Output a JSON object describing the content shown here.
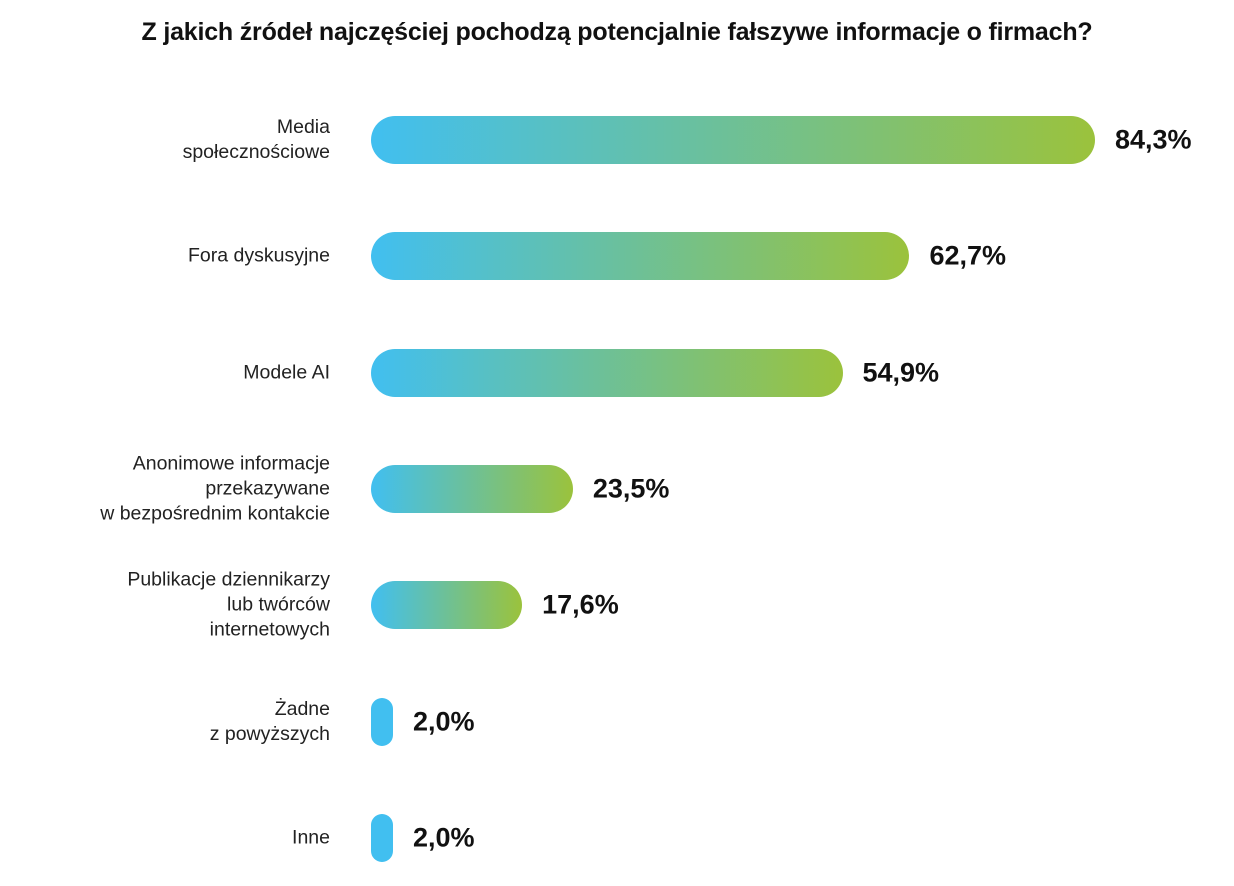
{
  "chart_data": {
    "type": "bar",
    "orientation": "horizontal",
    "title": "Z jakich źródeł najczęściej pochodzą potencjalnie fałszywe informacje o firmach?",
    "categories": [
      "Media\nspołecznościowe",
      "Fora dyskusyjne",
      "Modele AI",
      "Anonimowe informacje\nprzekazywane\nw bezpośrednim kontakcie",
      "Publikacje dziennikarzy\nlub twórców\ninternetowych",
      "Żadne\nz powyższych",
      "Inne"
    ],
    "values": [
      84.3,
      62.7,
      54.9,
      23.5,
      17.6,
      2.0,
      2.0
    ],
    "value_labels": [
      "84,3%",
      "62,7%",
      "54,9%",
      "23,5%",
      "17,6%",
      "2,0%",
      "2,0%"
    ],
    "unit": "%",
    "xlabel": "",
    "ylabel": "",
    "grid": false,
    "colors": {
      "start": "#41BFF0",
      "end": "#9BC23C"
    }
  }
}
